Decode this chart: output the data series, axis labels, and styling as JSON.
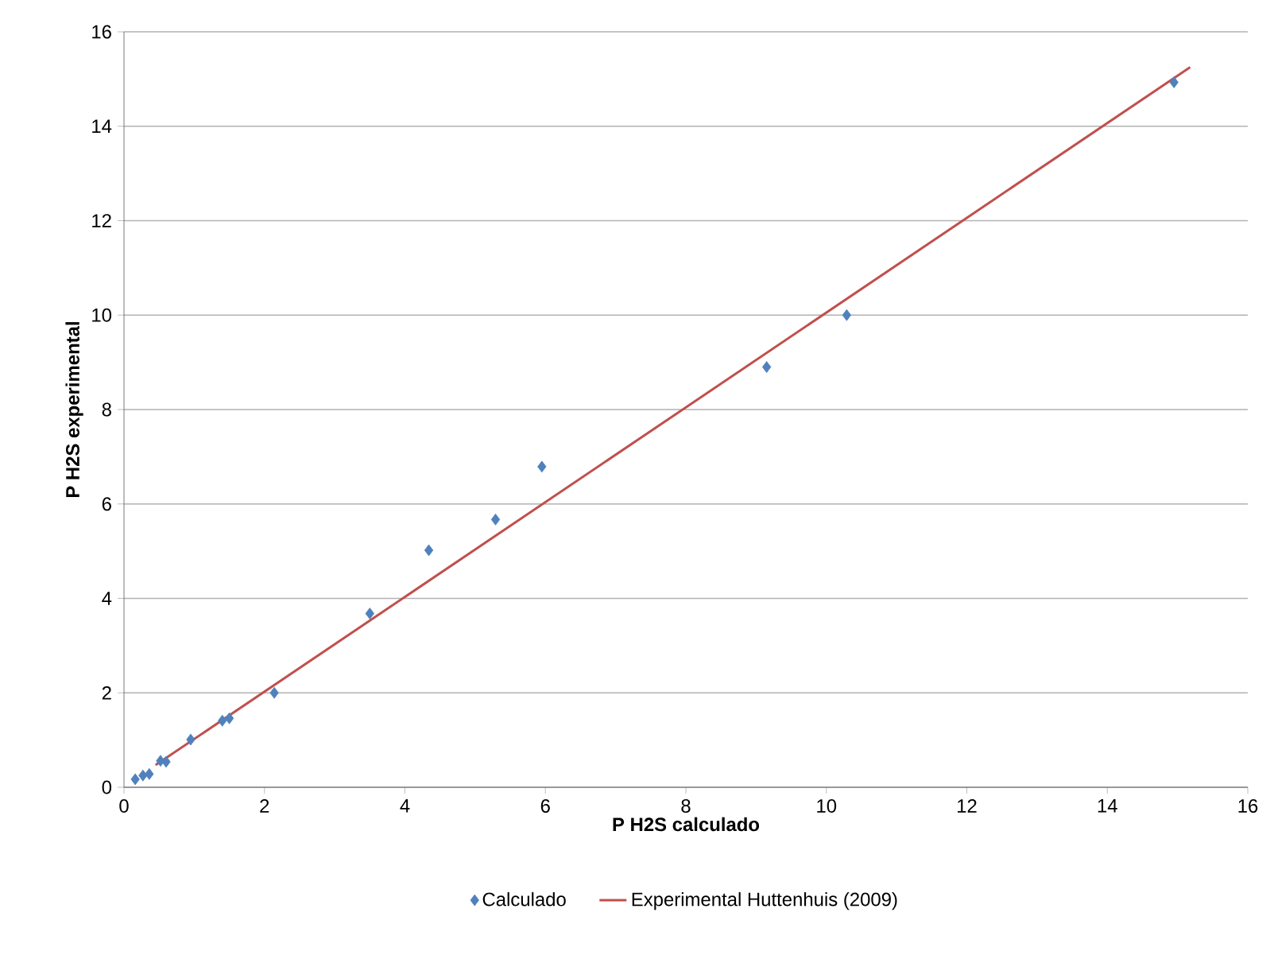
{
  "chart_data": {
    "type": "scatter",
    "xlabel": "P H2S calculado",
    "ylabel": "P H2S experimental",
    "xlim": [
      0,
      16
    ],
    "ylim": [
      0,
      16
    ],
    "xticks": [
      0,
      2,
      4,
      6,
      8,
      10,
      12,
      14,
      16
    ],
    "yticks": [
      0,
      2,
      4,
      6,
      8,
      10,
      12,
      14,
      16
    ],
    "grid": "y",
    "legend": "bottom",
    "series": [
      {
        "name": "Calculado",
        "marker": "diamond",
        "color": "#4f81bd",
        "x": [
          0.16,
          0.27,
          0.36,
          0.52,
          0.6,
          0.95,
          1.4,
          1.5,
          2.14,
          3.5,
          4.34,
          5.29,
          5.95,
          9.15,
          10.29,
          14.95
        ],
        "values": [
          0.17,
          0.25,
          0.28,
          0.56,
          0.54,
          1.01,
          1.41,
          1.46,
          2.0,
          3.68,
          5.02,
          5.67,
          6.79,
          8.9,
          10.0,
          14.93
        ]
      },
      {
        "name": "Experimental Huttenhuis (2009)",
        "type": "line",
        "marker": "none",
        "color": "#c0504d",
        "x": [
          0.45,
          15.18
        ],
        "values": [
          0.47,
          15.25
        ]
      }
    ]
  }
}
